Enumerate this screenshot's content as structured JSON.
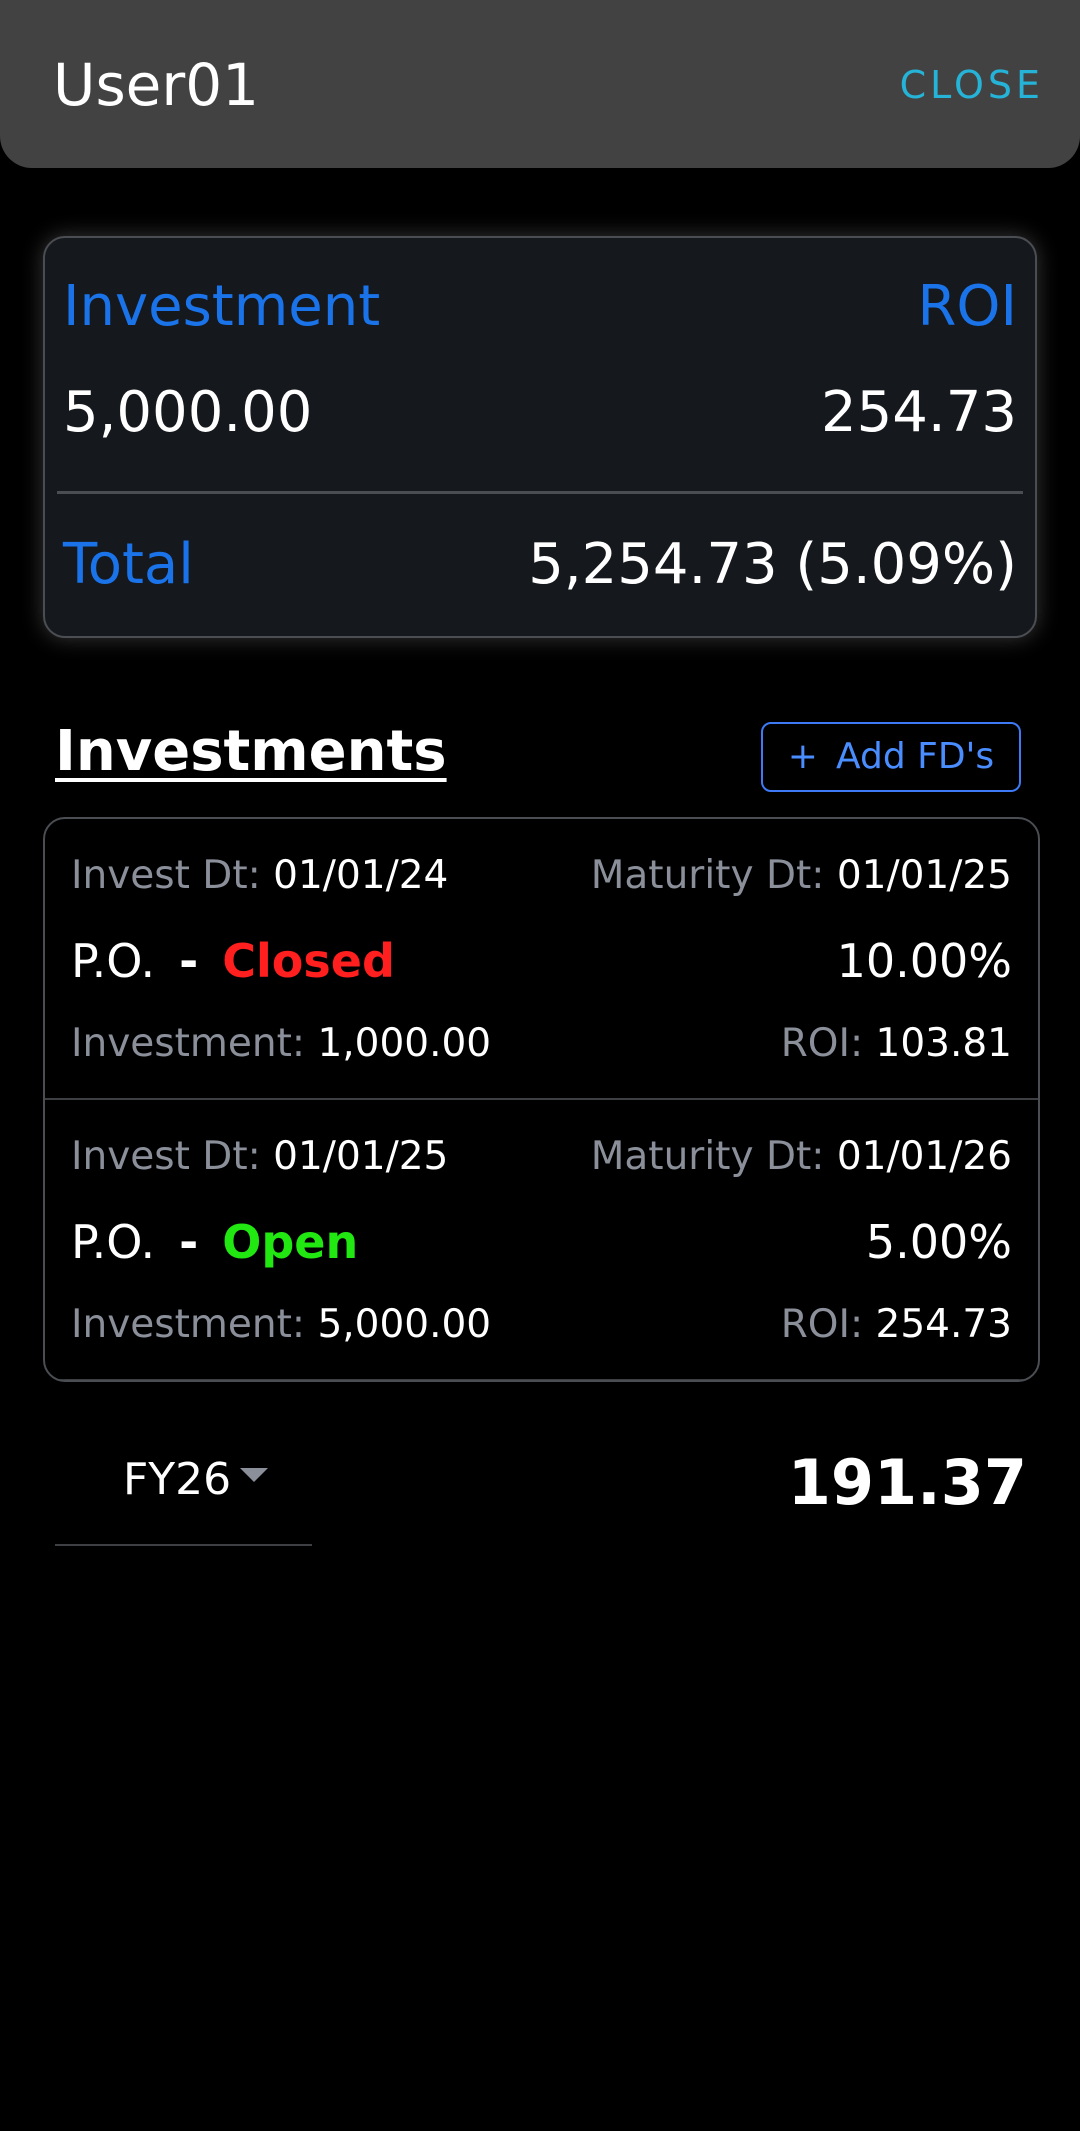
{
  "header": {
    "title": "User01",
    "close_label": "CLOSE"
  },
  "summary": {
    "investment_label": "Investment",
    "roi_label": "ROI",
    "investment_value": "5,000.00",
    "roi_value": "254.73",
    "total_label": "Total",
    "total_value": "5,254.73 (5.09%)"
  },
  "investments": {
    "title": "Investments",
    "add_button_icon": "+",
    "add_button_label": "Add FD's",
    "items": [
      {
        "invest_dt_label": "Invest Dt:",
        "invest_dt": "01/01/24",
        "maturity_dt_label": "Maturity Dt:",
        "maturity_dt": "01/01/25",
        "name": "P.O.",
        "separator": "-",
        "status": "Closed",
        "rate": "10.00%",
        "investment_label": "Investment:",
        "investment": "1,000.00",
        "roi_label": "ROI:",
        "roi": "103.81"
      },
      {
        "invest_dt_label": "Invest Dt:",
        "invest_dt": "01/01/25",
        "maturity_dt_label": "Maturity Dt:",
        "maturity_dt": "01/01/26",
        "name": "P.O.",
        "separator": "-",
        "status": "Open",
        "rate": "5.00%",
        "investment_label": "Investment:",
        "investment": "5,000.00",
        "roi_label": "ROI:",
        "roi": "254.73"
      }
    ]
  },
  "fiscal_year": {
    "selected": "FY26",
    "value": "191.37"
  },
  "colors": {
    "accent_blue": "#1a73e8",
    "close_cyan": "#26b3d8",
    "status_closed": "#ff1f1f",
    "status_open": "#22e812",
    "header_bg": "#424242"
  },
  "icons": {
    "dropdown": "caret-down-icon"
  }
}
